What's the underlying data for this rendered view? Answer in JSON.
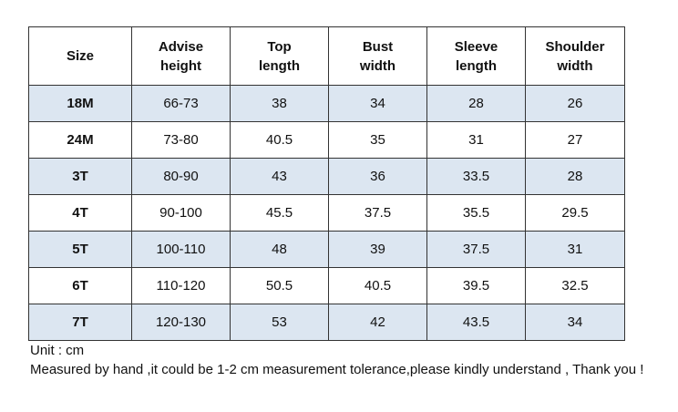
{
  "table": {
    "headers": [
      [
        "Size"
      ],
      [
        "Advise",
        "height"
      ],
      [
        "Top",
        "length"
      ],
      [
        "Bust",
        "width"
      ],
      [
        "Sleeve",
        "length"
      ],
      [
        "Shoulder",
        "width"
      ]
    ],
    "rows": [
      [
        "18M",
        "66-73",
        "38",
        "34",
        "28",
        "26"
      ],
      [
        "24M",
        "73-80",
        "40.5",
        "35",
        "31",
        "27"
      ],
      [
        "3T",
        "80-90",
        "43",
        "36",
        "33.5",
        "28"
      ],
      [
        "4T",
        "90-100",
        "45.5",
        "37.5",
        "35.5",
        "29.5"
      ],
      [
        "5T",
        "100-110",
        "48",
        "39",
        "37.5",
        "31"
      ],
      [
        "6T",
        "110-120",
        "50.5",
        "40.5",
        "39.5",
        "32.5"
      ],
      [
        "7T",
        "120-130",
        "53",
        "42",
        "43.5",
        "34"
      ]
    ],
    "shaded_row_color": "#dce6f1"
  },
  "notes": {
    "unit": "Unit : cm",
    "tolerance": "Measured by hand ,it could be 1-2 cm measurement tolerance,please kindly understand , Thank you !"
  }
}
